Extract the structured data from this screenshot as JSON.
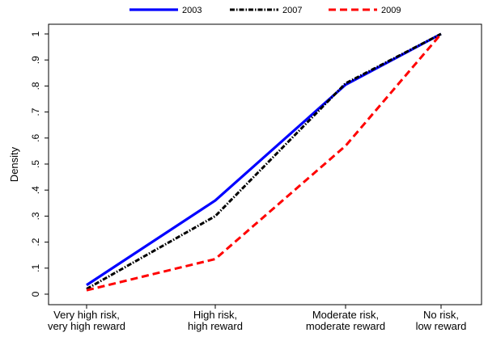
{
  "chart_data": {
    "type": "line",
    "categories": [
      [
        "Very high risk,",
        "very high reward"
      ],
      [
        "High risk,",
        "high reward"
      ],
      [
        "Moderate risk,",
        "moderate reward"
      ],
      [
        "No risk,",
        "low reward"
      ]
    ],
    "ylabel": "Density",
    "ylim": [
      0,
      1
    ],
    "yticks": [
      0,
      0.1,
      0.2,
      0.3,
      0.4,
      0.5,
      0.6,
      0.7,
      0.8,
      0.9,
      1
    ],
    "ytick_labels": [
      "0",
      ".1",
      ".2",
      ".3",
      ".4",
      ".5",
      ".6",
      ".7",
      ".8",
      ".9",
      "1"
    ],
    "grid": false,
    "legend_position": "top",
    "series": [
      {
        "name": "2003",
        "values": [
          0.035,
          0.36,
          0.805,
          1.0
        ],
        "color": "#0000ff",
        "style": "solid"
      },
      {
        "name": "2007",
        "values": [
          0.02,
          0.3,
          0.81,
          1.0
        ],
        "color": "#000000",
        "style": "dash-dot"
      },
      {
        "name": "2009",
        "values": [
          0.015,
          0.135,
          0.57,
          1.0
        ],
        "color": "#ff0000",
        "style": "dashed"
      }
    ]
  }
}
